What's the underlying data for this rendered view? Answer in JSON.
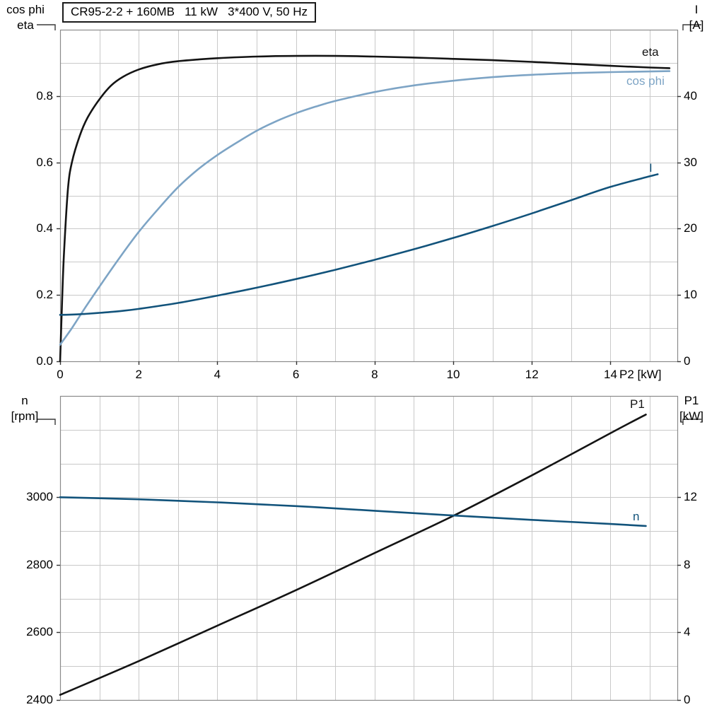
{
  "title_box": "CR95-2-2 + 160MB   11 kW   3*400 V, 50 Hz",
  "labels": {
    "top_left_line1": "cos phi",
    "top_left_line2": "eta",
    "top_right_line1": "I",
    "top_right_line2": "[A]",
    "x_axis_label": "P2 [kW]",
    "curve_eta": "eta",
    "curve_cosphi": "cos phi",
    "curve_current": "I",
    "bottom_left_line1": "n",
    "bottom_left_line2": "[rpm]",
    "bottom_right_line1": "P1",
    "bottom_right_line2": "[kW]",
    "curve_p1": "P1",
    "curve_n": "n"
  },
  "colors": {
    "black_curve": "#141414",
    "cosphi_curve": "#7da4c5",
    "blue_curve": "#12537b",
    "grid": "#c9c9c9",
    "frame": "#8a8a8a",
    "tick": "#333333",
    "background": "#ffffff",
    "text": "#000000"
  },
  "chart_data": [
    {
      "id": "motor-eta-cosphi-current",
      "type": "line",
      "title": "CR95-2-2 + 160MB   11 kW   3*400 V, 50 Hz",
      "xlabel": "P2 [kW]",
      "ylabel_left": "cos phi / eta",
      "ylabel_right": "I [A]",
      "xlim": [
        0,
        15.7
      ],
      "ylim_left": [
        0,
        1.0
      ],
      "ylim_right": [
        0,
        50
      ],
      "grid": true,
      "x_grid_step": 1,
      "y_grid_step_left": 0.1,
      "x_ticks": [
        0,
        2,
        4,
        6,
        8,
        10,
        12,
        14
      ],
      "x_tick_labels": [
        "0",
        "2",
        "4",
        "6",
        "8",
        "10",
        "12",
        "14"
      ],
      "y_ticks_left": [
        0.8,
        0.6,
        0.4,
        0.2,
        0.0
      ],
      "y_tick_labels_left": [
        "0.8",
        "0.6",
        "0.4",
        "0.2",
        "0.0"
      ],
      "y_ticks_right": [
        40,
        30,
        20,
        10,
        0
      ],
      "y_tick_labels_right": [
        "40",
        "30",
        "20",
        "10",
        "0"
      ],
      "legend_position": "labels-at-curve-ends-right",
      "series": [
        {
          "name": "eta",
          "axis": "left",
          "color_key": "black_curve",
          "x": [
            0,
            0.05,
            0.1,
            0.2,
            0.3,
            0.5,
            0.7,
            1,
            1.3,
            1.6,
            2,
            2.5,
            3,
            3.5,
            4,
            5,
            6,
            7,
            8,
            9,
            10,
            11,
            12,
            13,
            14,
            15,
            15.5
          ],
          "y": [
            0,
            0.18,
            0.33,
            0.52,
            0.6,
            0.68,
            0.735,
            0.79,
            0.832,
            0.858,
            0.88,
            0.896,
            0.905,
            0.91,
            0.914,
            0.919,
            0.921,
            0.921,
            0.919,
            0.916,
            0.912,
            0.908,
            0.903,
            0.897,
            0.891,
            0.886,
            0.884
          ]
        },
        {
          "name": "cos phi",
          "axis": "left",
          "color_key": "cosphi_curve",
          "x": [
            0,
            0.3,
            0.6,
            1,
            1.5,
            2,
            2.5,
            3,
            3.5,
            4,
            4.5,
            5,
            5.5,
            6,
            6.5,
            7,
            8,
            9,
            10,
            11,
            12,
            13,
            14,
            15,
            15.5
          ],
          "y": [
            0.05,
            0.1,
            0.155,
            0.225,
            0.31,
            0.39,
            0.46,
            0.525,
            0.578,
            0.622,
            0.66,
            0.695,
            0.724,
            0.748,
            0.768,
            0.785,
            0.812,
            0.832,
            0.846,
            0.857,
            0.864,
            0.869,
            0.872,
            0.874,
            0.875
          ]
        },
        {
          "name": "I",
          "axis": "right",
          "color_key": "blue_curve",
          "x": [
            0,
            0.5,
            1,
            1.5,
            2,
            3,
            4,
            5,
            6,
            7,
            8,
            9,
            10,
            11,
            12,
            13,
            14,
            15,
            15.2
          ],
          "y": [
            7,
            7.1,
            7.3,
            7.55,
            7.9,
            8.8,
            9.9,
            11.1,
            12.4,
            13.8,
            15.3,
            16.9,
            18.6,
            20.4,
            22.3,
            24.3,
            26.3,
            27.9,
            28.2
          ]
        }
      ]
    },
    {
      "id": "speed-and-input-power",
      "type": "line",
      "title": "",
      "xlabel": "",
      "ylabel_left": "n [rpm]",
      "ylabel_right": "P1 [kW]",
      "xlim": [
        0,
        15.7
      ],
      "ylim_left": [
        2400,
        3300
      ],
      "ylim_right": [
        0,
        18
      ],
      "grid": true,
      "x_grid_step": 1,
      "y_grid_step_left": 100,
      "x_ticks": [],
      "x_tick_labels": [],
      "y_ticks_left": [
        3000,
        2800,
        2600,
        2400
      ],
      "y_tick_labels_left": [
        "3000",
        "2800",
        "2600",
        "2400"
      ],
      "y_ticks_right": [
        12,
        8,
        4,
        0
      ],
      "y_tick_labels_right": [
        "12",
        "8",
        "4",
        "0"
      ],
      "legend_position": "labels-at-curve-ends-right",
      "series": [
        {
          "name": "P1",
          "axis": "right",
          "color_key": "black_curve",
          "x": [
            0,
            2,
            4,
            6,
            8,
            10,
            12,
            14,
            14.9
          ],
          "y": [
            0.3,
            2.3,
            4.4,
            6.5,
            8.7,
            10.9,
            13.3,
            15.8,
            16.9
          ]
        },
        {
          "name": "n",
          "axis": "left",
          "color_key": "blue_curve",
          "x": [
            0,
            2,
            4,
            6,
            8,
            10,
            12,
            14,
            14.9
          ],
          "y": [
            3000,
            2994,
            2985,
            2974,
            2960,
            2946,
            2933,
            2921,
            2915
          ]
        }
      ]
    }
  ]
}
